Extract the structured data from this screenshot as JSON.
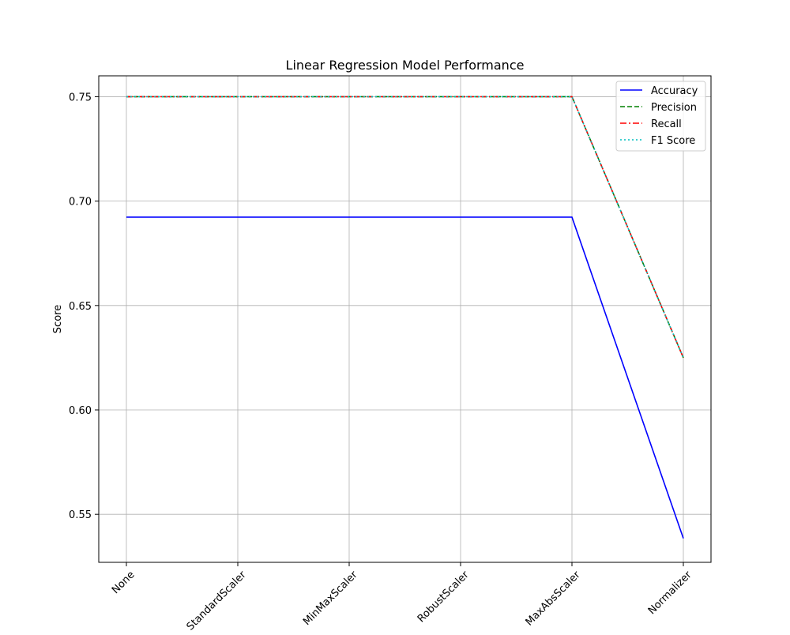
{
  "chart_data": {
    "type": "line",
    "title": "Linear Regression Model Performance",
    "xlabel": "",
    "ylabel": "Score",
    "categories": [
      "None",
      "StandardScaler",
      "MinMaxScaler",
      "RobustScaler",
      "MaxAbsScaler",
      "Normalizer"
    ],
    "ylim": [
      0.527,
      0.76
    ],
    "yticks": [
      0.55,
      0.6,
      0.65,
      0.7,
      0.75
    ],
    "ytick_labels": [
      "0.55",
      "0.60",
      "0.65",
      "0.70",
      "0.75"
    ],
    "grid": true,
    "legend_position": "top-right",
    "series": [
      {
        "name": "Accuracy",
        "values": [
          0.6923,
          0.6923,
          0.6923,
          0.6923,
          0.6923,
          0.5385
        ],
        "color": "#0000ff",
        "style": "solid"
      },
      {
        "name": "Precision",
        "values": [
          0.75,
          0.75,
          0.75,
          0.75,
          0.75,
          0.625
        ],
        "color": "#008000",
        "style": "dashed"
      },
      {
        "name": "Recall",
        "values": [
          0.75,
          0.75,
          0.75,
          0.75,
          0.75,
          0.625
        ],
        "color": "#ff0000",
        "style": "dashdot"
      },
      {
        "name": "F1 Score",
        "values": [
          0.75,
          0.75,
          0.75,
          0.75,
          0.75,
          0.625
        ],
        "color": "#00bfbf",
        "style": "dotted"
      }
    ]
  }
}
